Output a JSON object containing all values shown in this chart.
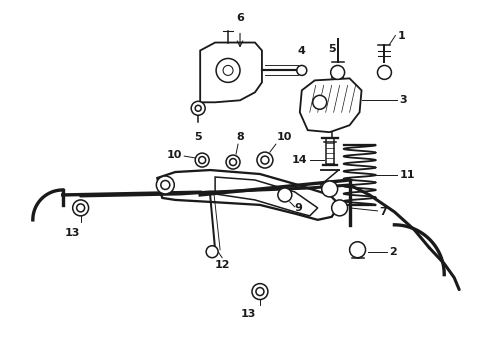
{
  "bg_color": "#ffffff",
  "line_color": "#1a1a1a",
  "lw": 1.1,
  "fig_width": 4.9,
  "fig_height": 3.6,
  "dpi": 100
}
